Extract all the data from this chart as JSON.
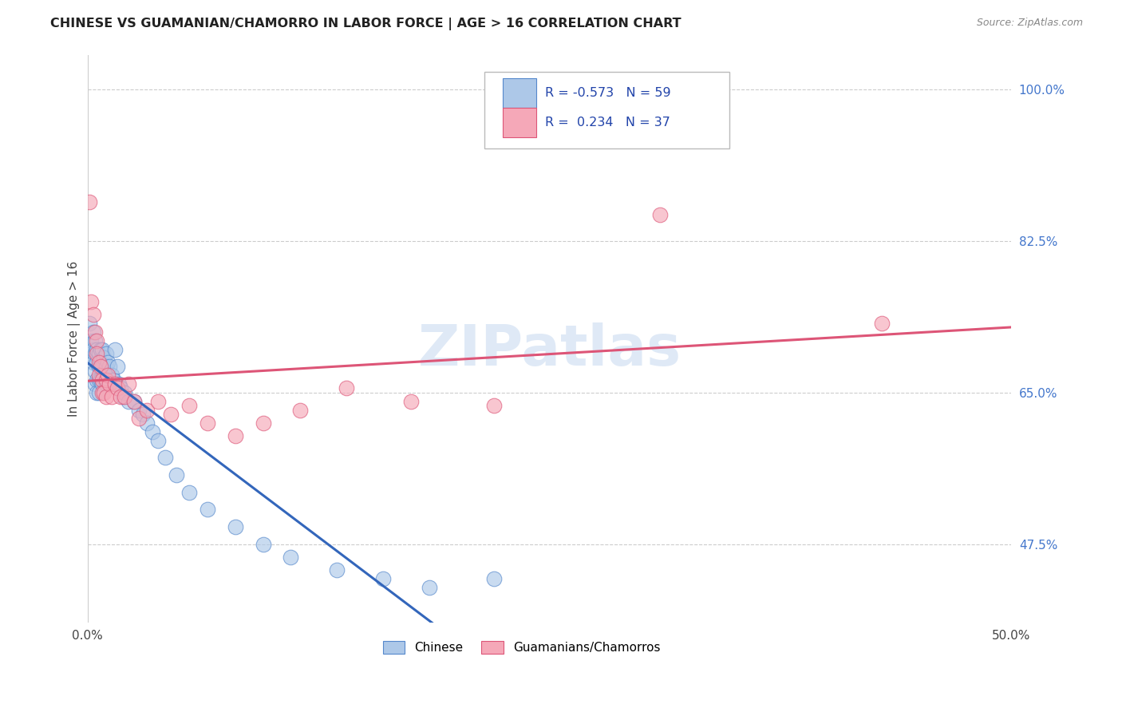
{
  "title": "CHINESE VS GUAMANIAN/CHAMORRO IN LABOR FORCE | AGE > 16 CORRELATION CHART",
  "source": "Source: ZipAtlas.com",
  "ylabel": "In Labor Force | Age > 16",
  "xmin": 0.0,
  "xmax": 0.5,
  "ymin": 0.385,
  "ymax": 1.04,
  "ytick_positions": [
    0.475,
    0.65,
    0.825,
    1.0
  ],
  "ytick_labels": [
    "47.5%",
    "65.0%",
    "82.5%",
    "100.0%"
  ],
  "xticks": [
    0.0,
    0.1,
    0.2,
    0.3,
    0.4,
    0.5
  ],
  "xtick_labels": [
    "0.0%",
    "",
    "",
    "",
    "",
    "50.0%"
  ],
  "grid_color": "#cccccc",
  "background_color": "#ffffff",
  "chinese_color": "#adc8e8",
  "guam_color": "#f5a8b8",
  "chinese_edge_color": "#5588cc",
  "guam_edge_color": "#dd5577",
  "line_blue_color": "#3366bb",
  "line_pink_color": "#dd5577",
  "line_dashed_color": "#99bbdd",
  "legend_R_chinese": "-0.573",
  "legend_N_chinese": "59",
  "legend_R_guam": "0.234",
  "legend_N_guam": "37",
  "watermark_text": "ZIPatlas",
  "chinese_x": [
    0.001,
    0.002,
    0.002,
    0.003,
    0.003,
    0.003,
    0.004,
    0.004,
    0.004,
    0.004,
    0.005,
    0.005,
    0.005,
    0.005,
    0.006,
    0.006,
    0.006,
    0.006,
    0.007,
    0.007,
    0.007,
    0.008,
    0.008,
    0.008,
    0.009,
    0.009,
    0.01,
    0.01,
    0.01,
    0.011,
    0.011,
    0.012,
    0.012,
    0.013,
    0.014,
    0.015,
    0.016,
    0.017,
    0.018,
    0.019,
    0.02,
    0.022,
    0.025,
    0.028,
    0.03,
    0.032,
    0.035,
    0.038,
    0.042,
    0.048,
    0.055,
    0.065,
    0.08,
    0.095,
    0.11,
    0.135,
    0.16,
    0.185,
    0.22
  ],
  "chinese_y": [
    0.73,
    0.71,
    0.695,
    0.72,
    0.7,
    0.685,
    0.71,
    0.695,
    0.675,
    0.66,
    0.7,
    0.685,
    0.665,
    0.65,
    0.695,
    0.68,
    0.665,
    0.65,
    0.7,
    0.685,
    0.665,
    0.7,
    0.68,
    0.66,
    0.69,
    0.67,
    0.695,
    0.68,
    0.66,
    0.685,
    0.665,
    0.68,
    0.66,
    0.67,
    0.665,
    0.7,
    0.68,
    0.66,
    0.655,
    0.645,
    0.65,
    0.64,
    0.64,
    0.63,
    0.625,
    0.615,
    0.605,
    0.595,
    0.575,
    0.555,
    0.535,
    0.515,
    0.495,
    0.475,
    0.46,
    0.445,
    0.435,
    0.425,
    0.435
  ],
  "guam_x": [
    0.001,
    0.002,
    0.003,
    0.004,
    0.005,
    0.005,
    0.006,
    0.006,
    0.007,
    0.008,
    0.008,
    0.009,
    0.01,
    0.01,
    0.011,
    0.012,
    0.013,
    0.015,
    0.016,
    0.018,
    0.02,
    0.022,
    0.025,
    0.028,
    0.032,
    0.038,
    0.045,
    0.055,
    0.065,
    0.08,
    0.095,
    0.115,
    0.14,
    0.175,
    0.22,
    0.31,
    0.43
  ],
  "guam_y": [
    0.87,
    0.755,
    0.74,
    0.72,
    0.71,
    0.695,
    0.685,
    0.67,
    0.68,
    0.665,
    0.65,
    0.65,
    0.665,
    0.645,
    0.67,
    0.66,
    0.645,
    0.66,
    0.655,
    0.645,
    0.645,
    0.66,
    0.64,
    0.62,
    0.63,
    0.64,
    0.625,
    0.635,
    0.615,
    0.6,
    0.615,
    0.63,
    0.655,
    0.64,
    0.635,
    0.855,
    0.73
  ]
}
